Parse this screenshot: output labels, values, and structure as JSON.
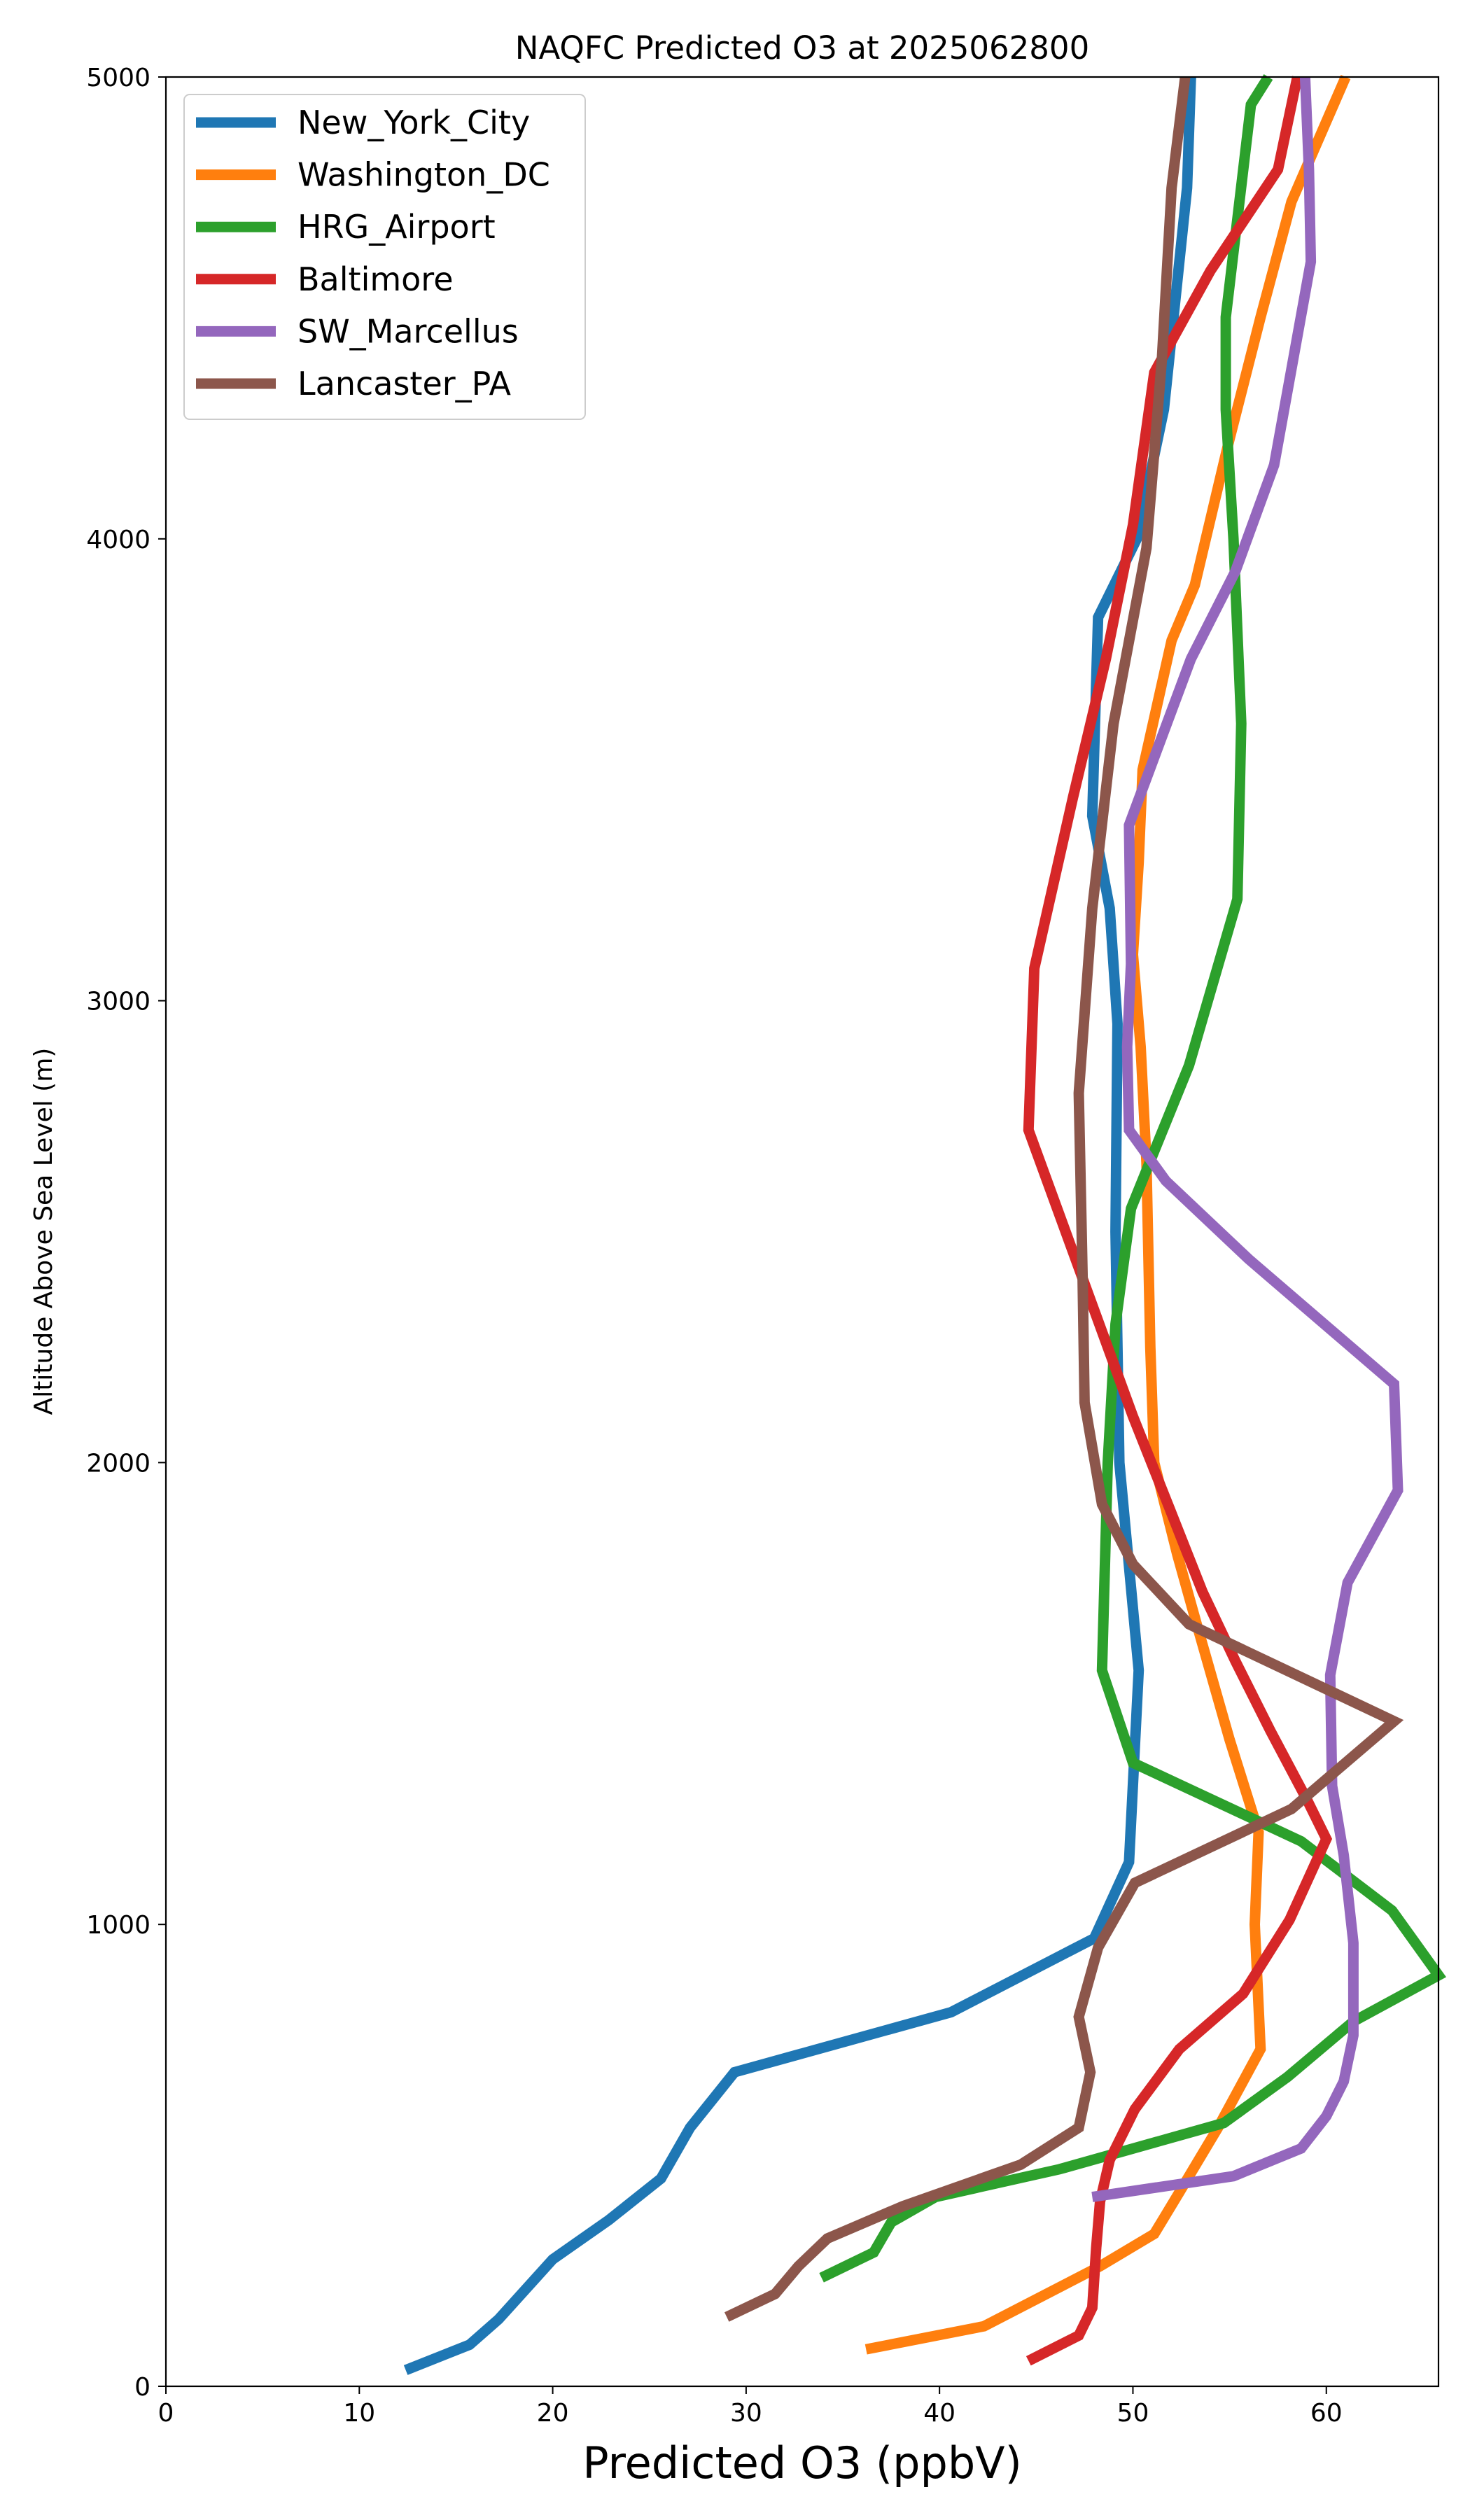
{
  "chart_data": {
    "type": "line",
    "title": "NAQFC Predicted O3 at 2025062800",
    "xlabel": "Predicted O3 (ppbV)",
    "ylabel": "Altitude Above Sea Level (m)",
    "xlim": [
      0,
      65.8
    ],
    "ylim": [
      0,
      5000
    ],
    "xticks": [
      0,
      10,
      20,
      30,
      40,
      50,
      60
    ],
    "yticks": [
      0,
      1000,
      2000,
      3000,
      4000,
      5000
    ],
    "grid": false,
    "legend_position": "top-left",
    "series": [
      {
        "name": "New_York_City",
        "color": "#1f77b4",
        "points": [
          [
            12.4,
            35
          ],
          [
            15.7,
            90
          ],
          [
            17.2,
            145
          ],
          [
            20.0,
            275
          ],
          [
            22.9,
            360
          ],
          [
            25.6,
            450
          ],
          [
            27.1,
            560
          ],
          [
            29.4,
            680
          ],
          [
            40.6,
            810
          ],
          [
            48.0,
            970
          ],
          [
            49.8,
            1135
          ],
          [
            50.3,
            1550
          ],
          [
            49.3,
            2000
          ],
          [
            49.1,
            2500
          ],
          [
            49.2,
            2950
          ],
          [
            48.8,
            3200
          ],
          [
            47.9,
            3400
          ],
          [
            48.2,
            3830
          ],
          [
            50.2,
            4000
          ],
          [
            51.6,
            4280
          ],
          [
            52.8,
            4760
          ],
          [
            53.0,
            5000
          ]
        ]
      },
      {
        "name": "Washington_DC",
        "color": "#ff7f0e",
        "points": [
          [
            36.2,
            80
          ],
          [
            42.3,
            130
          ],
          [
            48.3,
            260
          ],
          [
            51.1,
            330
          ],
          [
            52.4,
            420
          ],
          [
            54.4,
            560
          ],
          [
            56.6,
            730
          ],
          [
            56.3,
            1000
          ],
          [
            56.5,
            1200
          ],
          [
            55.0,
            1400
          ],
          [
            53.3,
            1650
          ],
          [
            52.3,
            1800
          ],
          [
            51.1,
            2000
          ],
          [
            50.9,
            2250
          ],
          [
            50.7,
            2650
          ],
          [
            50.4,
            2900
          ],
          [
            50.2,
            3000
          ],
          [
            50.0,
            3100
          ],
          [
            50.3,
            3300
          ],
          [
            50.5,
            3500
          ],
          [
            52.0,
            3780
          ],
          [
            53.2,
            3900
          ],
          [
            54.9,
            4200
          ],
          [
            56.6,
            4480
          ],
          [
            58.2,
            4730
          ],
          [
            61.0,
            5000
          ]
        ]
      },
      {
        "name": "HRG_Airport",
        "color": "#2ca02c",
        "points": [
          [
            33.9,
            235
          ],
          [
            36.6,
            290
          ],
          [
            37.5,
            355
          ],
          [
            39.8,
            410
          ],
          [
            46.2,
            470
          ],
          [
            54.7,
            570
          ],
          [
            58.0,
            670
          ],
          [
            61.4,
            790
          ],
          [
            65.8,
            890
          ],
          [
            63.4,
            1030
          ],
          [
            58.7,
            1180
          ],
          [
            50.0,
            1350
          ],
          [
            48.4,
            1550
          ],
          [
            48.7,
            2000
          ],
          [
            49.1,
            2300
          ],
          [
            49.9,
            2550
          ],
          [
            52.9,
            2860
          ],
          [
            55.4,
            3220
          ],
          [
            55.6,
            3600
          ],
          [
            55.2,
            4000
          ],
          [
            54.8,
            4280
          ],
          [
            54.8,
            4480
          ],
          [
            56.1,
            4940
          ],
          [
            57.0,
            5000
          ]
        ]
      },
      {
        "name": "Baltimore",
        "color": "#d62728",
        "points": [
          [
            44.6,
            55
          ],
          [
            47.2,
            110
          ],
          [
            47.9,
            170
          ],
          [
            48.1,
            300
          ],
          [
            48.3,
            400
          ],
          [
            48.8,
            490
          ],
          [
            50.1,
            600
          ],
          [
            52.4,
            730
          ],
          [
            55.7,
            850
          ],
          [
            58.1,
            1010
          ],
          [
            60.0,
            1185
          ],
          [
            59.0,
            1270
          ],
          [
            57.1,
            1420
          ],
          [
            55.3,
            1570
          ],
          [
            53.6,
            1720
          ],
          [
            51.9,
            1900
          ],
          [
            50.0,
            2100
          ],
          [
            47.3,
            2410
          ],
          [
            44.6,
            2720
          ],
          [
            44.9,
            3070
          ],
          [
            46.9,
            3440
          ],
          [
            48.6,
            3740
          ],
          [
            50.0,
            4030
          ],
          [
            51.1,
            4360
          ],
          [
            54.0,
            4580
          ],
          [
            57.5,
            4800
          ],
          [
            58.5,
            5000
          ]
        ]
      },
      {
        "name": "SW_Marcellus",
        "color": "#9467bd",
        "points": [
          [
            47.9,
            410
          ],
          [
            55.2,
            455
          ],
          [
            58.7,
            515
          ],
          [
            60.0,
            585
          ],
          [
            60.9,
            660
          ],
          [
            61.4,
            760
          ],
          [
            61.4,
            960
          ],
          [
            60.9,
            1150
          ],
          [
            60.3,
            1300
          ],
          [
            60.2,
            1540
          ],
          [
            61.1,
            1740
          ],
          [
            63.7,
            1940
          ],
          [
            63.5,
            2170
          ],
          [
            56.0,
            2440
          ],
          [
            51.7,
            2610
          ],
          [
            49.8,
            2720
          ],
          [
            49.7,
            2900
          ],
          [
            49.9,
            3080
          ],
          [
            49.8,
            3380
          ],
          [
            53.0,
            3740
          ],
          [
            55.3,
            3930
          ],
          [
            57.3,
            4160
          ],
          [
            59.2,
            4600
          ],
          [
            59.1,
            4800
          ],
          [
            58.9,
            5000
          ]
        ]
      },
      {
        "name": "Lancaster_PA",
        "color": "#8c564b",
        "points": [
          [
            29.0,
            150
          ],
          [
            31.5,
            200
          ],
          [
            32.7,
            260
          ],
          [
            34.2,
            320
          ],
          [
            38.1,
            390
          ],
          [
            44.2,
            480
          ],
          [
            47.2,
            560
          ],
          [
            47.8,
            680
          ],
          [
            47.2,
            800
          ],
          [
            48.2,
            950
          ],
          [
            50.1,
            1090
          ],
          [
            58.2,
            1250
          ],
          [
            63.5,
            1440
          ],
          [
            52.9,
            1650
          ],
          [
            50.0,
            1780
          ],
          [
            48.4,
            1910
          ],
          [
            47.5,
            2130
          ],
          [
            47.4,
            2400
          ],
          [
            47.2,
            2800
          ],
          [
            47.9,
            3200
          ],
          [
            49.0,
            3600
          ],
          [
            50.7,
            3980
          ],
          [
            51.5,
            4390
          ],
          [
            52.0,
            4760
          ],
          [
            52.7,
            5000
          ]
        ]
      }
    ]
  }
}
